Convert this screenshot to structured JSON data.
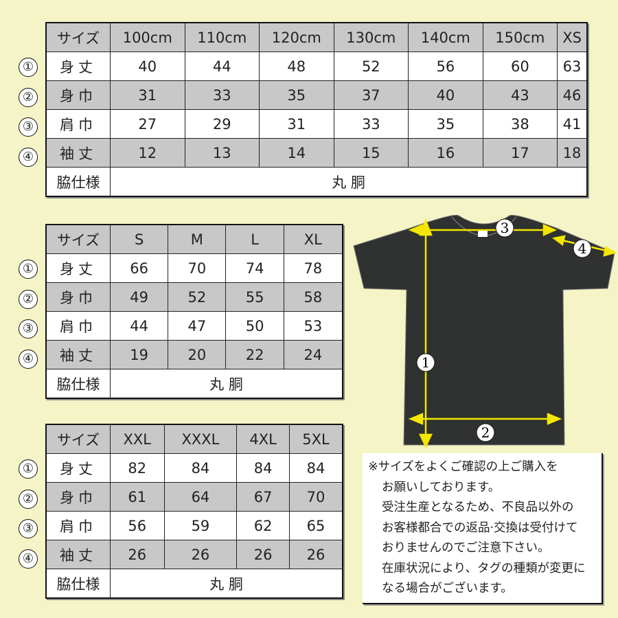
{
  "tables": [
    {
      "header_label": "サイズ",
      "sizes": [
        "100cm",
        "110cm",
        "120cm",
        "130cm",
        "140cm",
        "150cm",
        "XS"
      ],
      "rows": [
        {
          "num": "①",
          "label": "身丈",
          "values": [
            "40",
            "44",
            "48",
            "52",
            "56",
            "60",
            "63"
          ]
        },
        {
          "num": "②",
          "label": "身巾",
          "values": [
            "31",
            "33",
            "35",
            "37",
            "40",
            "43",
            "46"
          ]
        },
        {
          "num": "③",
          "label": "肩巾",
          "values": [
            "27",
            "29",
            "31",
            "33",
            "35",
            "38",
            "41"
          ]
        },
        {
          "num": "④",
          "label": "袖丈",
          "values": [
            "12",
            "13",
            "14",
            "15",
            "16",
            "17",
            "18"
          ]
        }
      ],
      "side_label": "脇仕様",
      "side_value": "丸 胴"
    },
    {
      "header_label": "サイズ",
      "sizes": [
        "S",
        "M",
        "L",
        "XL"
      ],
      "rows": [
        {
          "num": "①",
          "label": "身丈",
          "values": [
            "66",
            "70",
            "74",
            "78"
          ]
        },
        {
          "num": "②",
          "label": "身巾",
          "values": [
            "49",
            "52",
            "55",
            "58"
          ]
        },
        {
          "num": "③",
          "label": "肩巾",
          "values": [
            "44",
            "47",
            "50",
            "53"
          ]
        },
        {
          "num": "④",
          "label": "袖丈",
          "values": [
            "19",
            "20",
            "22",
            "24"
          ]
        }
      ],
      "side_label": "脇仕様",
      "side_value": "丸 胴"
    },
    {
      "header_label": "サイズ",
      "sizes": [
        "XXL",
        "XXXL",
        "4XL",
        "5XL"
      ],
      "rows": [
        {
          "num": "①",
          "label": "身丈",
          "values": [
            "82",
            "84",
            "84",
            "84"
          ]
        },
        {
          "num": "②",
          "label": "身巾",
          "values": [
            "61",
            "64",
            "67",
            "70"
          ]
        },
        {
          "num": "③",
          "label": "肩巾",
          "values": [
            "56",
            "59",
            "62",
            "65"
          ]
        },
        {
          "num": "④",
          "label": "袖丈",
          "values": [
            "26",
            "26",
            "26",
            "26"
          ]
        }
      ],
      "side_label": "脇仕様",
      "side_value": "丸 胴"
    }
  ],
  "diagram": {
    "markers": [
      "1",
      "2",
      "3",
      "4"
    ],
    "shirt_color": "#2f3230",
    "arrow_color": "#f5e600"
  },
  "note": {
    "lines": [
      "※サイズをよくご確認の上ご購入を",
      "お願いしております。",
      "受注生産となるため、不良品以外の",
      "お客様都合での返品·交換は受付けて",
      "おりませんのでご注意下さい。",
      "在庫状況により、タグの種類が変更に",
      "なる場合がございます。"
    ]
  },
  "colors": {
    "background": "#f4f4c6",
    "gray_row": "#c8c8c8"
  }
}
